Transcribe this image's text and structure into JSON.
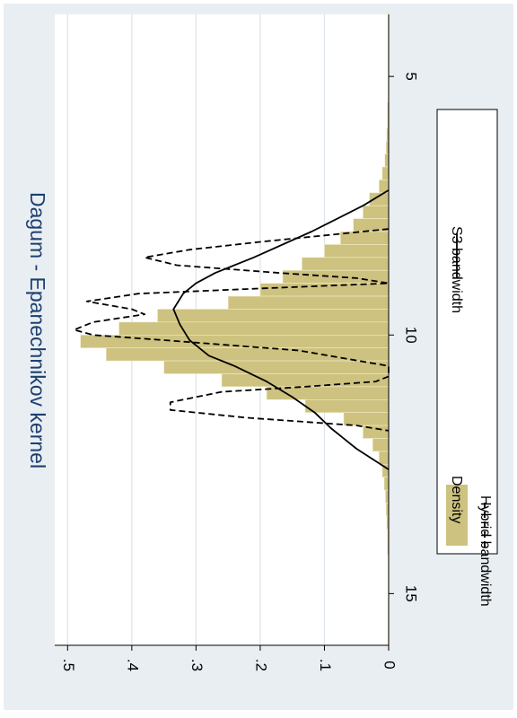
{
  "chart_data": {
    "type": "bar",
    "title": "Dagum - Epanechnikov kernel",
    "orientation": "rotated-90-clockwise",
    "xlim": [
      3.8,
      16
    ],
    "ylim": [
      0,
      0.52
    ],
    "x_ticks": [
      {
        "value": 5,
        "label": "5"
      },
      {
        "value": 10,
        "label": "10"
      },
      {
        "value": 15,
        "label": "15"
      }
    ],
    "y_ticks": [
      {
        "value": 0,
        "label": "0"
      },
      {
        "value": 0.1,
        "label": ".1"
      },
      {
        "value": 0.2,
        "label": ".2"
      },
      {
        "value": 0.3,
        "label": ".3"
      },
      {
        "value": 0.4,
        "label": ".4"
      },
      {
        "value": 0.5,
        "label": ".5"
      }
    ],
    "grid": true,
    "legend_position": "right",
    "legend": [
      {
        "label": "Density",
        "style": "bar"
      },
      {
        "label": "S3 bandwidth",
        "style": "solid"
      },
      {
        "label": "Hybrid bandwidth",
        "style": "dashed"
      }
    ],
    "histogram": {
      "name": "Density",
      "color": "#cdc27f",
      "bin_width": 0.25,
      "bins": [
        {
          "x0": 3.75,
          "y": 0.001
        },
        {
          "x0": 4.0,
          "y": 0.001
        },
        {
          "x0": 4.25,
          "y": 0.001
        },
        {
          "x0": 4.5,
          "y": 0.001
        },
        {
          "x0": 4.75,
          "y": 0.001
        },
        {
          "x0": 5.0,
          "y": 0.001
        },
        {
          "x0": 5.25,
          "y": 0.001
        },
        {
          "x0": 5.5,
          "y": 0.002
        },
        {
          "x0": 5.75,
          "y": 0.002
        },
        {
          "x0": 6.0,
          "y": 0.003
        },
        {
          "x0": 6.25,
          "y": 0.004
        },
        {
          "x0": 6.5,
          "y": 0.006
        },
        {
          "x0": 6.75,
          "y": 0.01
        },
        {
          "x0": 7.0,
          "y": 0.015
        },
        {
          "x0": 7.25,
          "y": 0.03
        },
        {
          "x0": 7.5,
          "y": 0.04
        },
        {
          "x0": 7.75,
          "y": 0.055
        },
        {
          "x0": 8.0,
          "y": 0.075
        },
        {
          "x0": 8.25,
          "y": 0.1
        },
        {
          "x0": 8.5,
          "y": 0.135
        },
        {
          "x0": 8.75,
          "y": 0.165
        },
        {
          "x0": 9.0,
          "y": 0.2
        },
        {
          "x0": 9.25,
          "y": 0.25
        },
        {
          "x0": 9.5,
          "y": 0.36
        },
        {
          "x0": 9.75,
          "y": 0.42
        },
        {
          "x0": 10.0,
          "y": 0.48
        },
        {
          "x0": 10.25,
          "y": 0.44
        },
        {
          "x0": 10.5,
          "y": 0.35
        },
        {
          "x0": 10.75,
          "y": 0.26
        },
        {
          "x0": 11.0,
          "y": 0.19
        },
        {
          "x0": 11.25,
          "y": 0.13
        },
        {
          "x0": 11.5,
          "y": 0.07
        },
        {
          "x0": 11.75,
          "y": 0.04
        },
        {
          "x0": 12.0,
          "y": 0.025
        },
        {
          "x0": 12.25,
          "y": 0.015
        },
        {
          "x0": 12.5,
          "y": 0.01
        },
        {
          "x0": 12.75,
          "y": 0.007
        },
        {
          "x0": 13.0,
          "y": 0.005
        },
        {
          "x0": 13.25,
          "y": 0.004
        },
        {
          "x0": 13.5,
          "y": 0.003
        },
        {
          "x0": 13.75,
          "y": 0.002
        },
        {
          "x0": 14.0,
          "y": 0.002
        },
        {
          "x0": 14.25,
          "y": 0.001
        },
        {
          "x0": 14.5,
          "y": 0.001
        },
        {
          "x0": 14.75,
          "y": 0.001
        },
        {
          "x0": 15.0,
          "y": 0.001
        },
        {
          "x0": 15.25,
          "y": 0.001
        },
        {
          "x0": 15.5,
          "y": 0.001
        },
        {
          "x0": 15.75,
          "y": 0.001
        }
      ]
    },
    "series": [
      {
        "name": "S3 bandwidth",
        "style": "solid",
        "x": [
          7.2,
          7.5,
          8.0,
          8.5,
          8.8,
          9.0,
          9.2,
          9.5,
          9.8,
          10.1,
          10.4,
          10.6,
          10.9,
          11.2,
          11.5,
          11.8,
          12.2,
          12.6
        ],
        "y": [
          0.0,
          0.04,
          0.12,
          0.21,
          0.27,
          0.3,
          0.32,
          0.335,
          0.325,
          0.31,
          0.28,
          0.24,
          0.19,
          0.15,
          0.115,
          0.09,
          0.05,
          0.0
        ]
      },
      {
        "name": "Hybrid bandwidth",
        "style": "dashed",
        "x": [
          7.95,
          8.05,
          8.2,
          8.35,
          8.5,
          8.65,
          8.8,
          8.9,
          9.0,
          9.1,
          9.2,
          9.35,
          9.5,
          9.6,
          9.75,
          9.9,
          10.0,
          10.1,
          10.3,
          10.6,
          10.8,
          10.9,
          11.0,
          11.1,
          11.3,
          11.45,
          11.6,
          11.75,
          11.85
        ],
        "y": [
          0.0,
          0.08,
          0.2,
          0.31,
          0.38,
          0.33,
          0.17,
          0.05,
          0.0,
          0.2,
          0.39,
          0.47,
          0.4,
          0.38,
          0.46,
          0.49,
          0.46,
          0.35,
          0.14,
          0.0,
          0.0,
          0.02,
          0.13,
          0.26,
          0.34,
          0.34,
          0.22,
          0.05,
          0.0
        ]
      }
    ]
  }
}
